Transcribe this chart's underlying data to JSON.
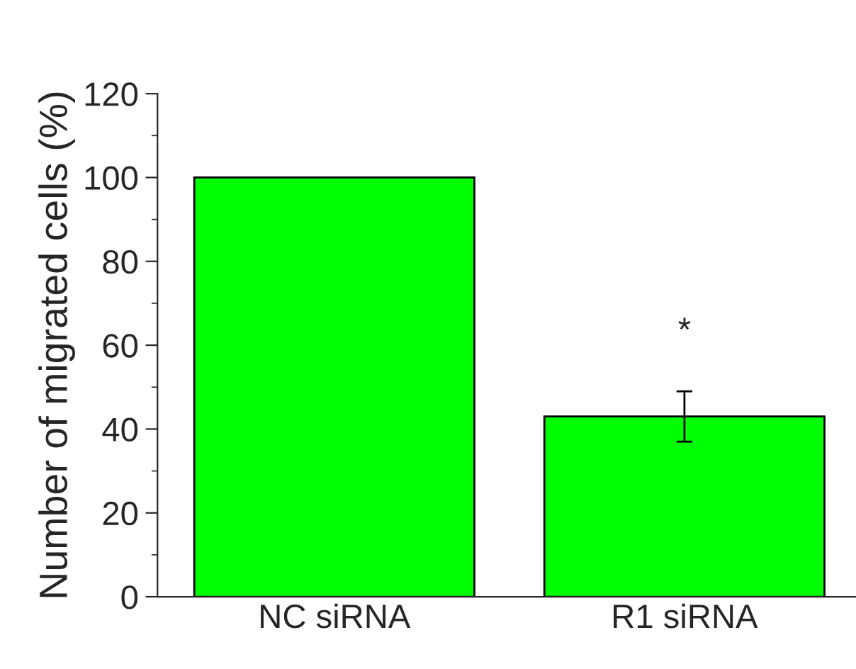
{
  "chart_data": {
    "type": "bar",
    "ylabel": "Number of migrated cells (%)",
    "categories": [
      "NC siRNA",
      "R1 siRNA"
    ],
    "values": [
      100,
      43
    ],
    "errors": [
      null,
      6
    ],
    "color": "#00ff00",
    "ylim": [
      0,
      120
    ],
    "yticks": [
      0,
      20,
      40,
      60,
      80,
      100,
      120
    ],
    "grid": false,
    "legend": false,
    "annotations": [
      "*"
    ]
  }
}
